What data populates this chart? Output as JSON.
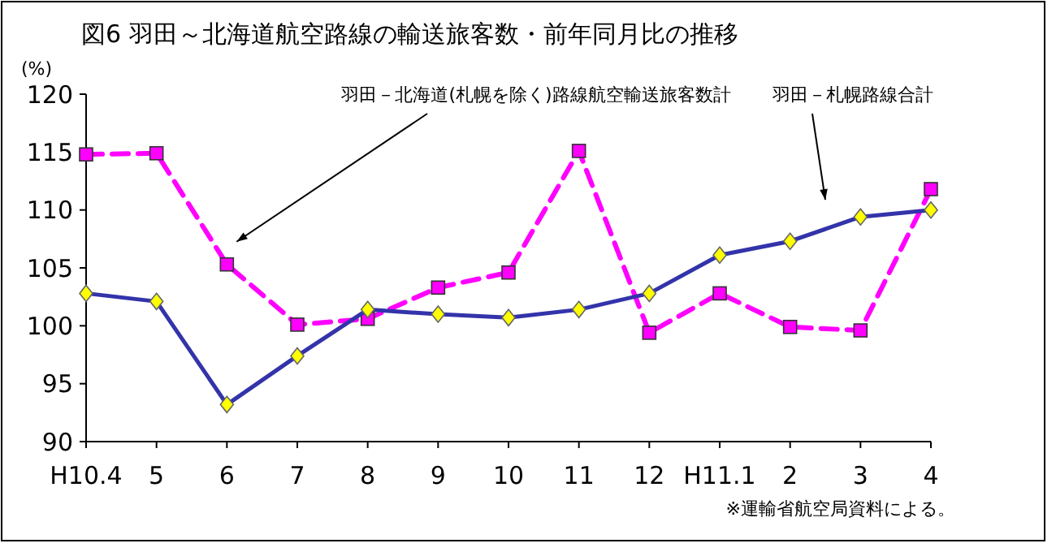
{
  "chart_data": {
    "type": "line",
    "title": "図6 羽田～北海道航空路線の輸送旅客数・前年同月比の推移",
    "ylabel": "(%)",
    "categories": [
      "H10.4",
      "5",
      "6",
      "7",
      "8",
      "9",
      "10",
      "11",
      "12",
      "H11.1",
      "2",
      "3",
      "4"
    ],
    "ylim": [
      90,
      120
    ],
    "yticks": [
      90,
      95,
      100,
      105,
      110,
      115,
      120
    ],
    "grid": false,
    "series": [
      {
        "name": "羽田－北海道(札幌を除く)路線航空輸送旅客数計",
        "color": "#ff00ff",
        "marker": "square",
        "line_style": "dashed",
        "values": [
          114.8,
          114.9,
          105.3,
          100.1,
          100.6,
          103.3,
          104.6,
          115.1,
          99.4,
          102.8,
          99.9,
          99.6,
          111.8
        ]
      },
      {
        "name": "羽田－札幌路線合計",
        "color": "#3333aa",
        "marker": "diamond",
        "line_style": "solid",
        "values": [
          102.8,
          102.1,
          93.2,
          97.4,
          101.4,
          101.0,
          100.7,
          101.4,
          102.8,
          106.1,
          107.3,
          109.4,
          110.0
        ]
      }
    ],
    "annotations": [
      "※運輸省航空局資料による。"
    ]
  }
}
